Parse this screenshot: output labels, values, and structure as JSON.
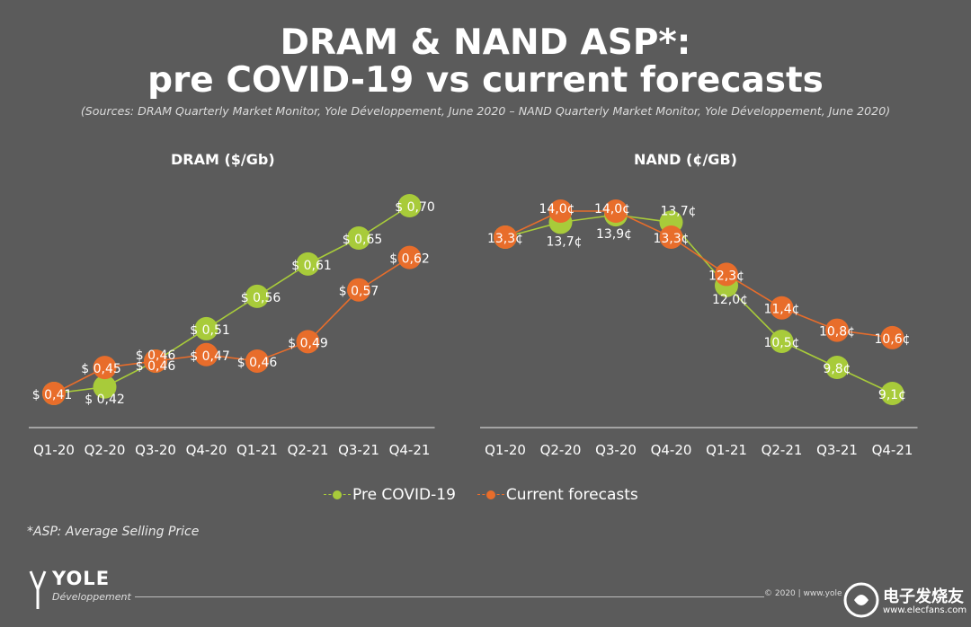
{
  "header": {
    "title_line1": "DRAM & NAND ASP*:",
    "title_line2": "pre COVID-19 vs current forecasts",
    "sources": "(Sources: DRAM Quarterly Market Monitor, Yole Développement, June 2020 – NAND Quarterly Market Monitor, Yole Développement, June 2020)"
  },
  "colors": {
    "pre": "#a8cb3a",
    "current": "#e86d2b",
    "background": "#5b5b5b"
  },
  "legend": {
    "pre_label": "Pre COVID-19",
    "current_label": "Current forecasts"
  },
  "footnote": "*ASP: Average Selling Price",
  "footer": {
    "logo_word": "YOLE",
    "logo_sub": "Développement",
    "copyright": "© 2020 | www.yole",
    "watermark_text": "电子发烧友",
    "watermark_url": "www.elecfans.com"
  },
  "chart_data": [
    {
      "type": "line",
      "title": "DRAM ($/Gb)",
      "categories": [
        "Q1-20",
        "Q2-20",
        "Q3-20",
        "Q4-20",
        "Q1-21",
        "Q2-21",
        "Q3-21",
        "Q4-21"
      ],
      "series": [
        {
          "name": "Pre COVID-19",
          "values": [
            0.41,
            0.42,
            0.46,
            0.51,
            0.56,
            0.61,
            0.65,
            0.7
          ],
          "labels": [
            "",
            "$ 0,42",
            "$ 0,46",
            "$ 0,51",
            "$ 0,56",
            "$ 0,61",
            "$ 0,65",
            "$ 0,70"
          ]
        },
        {
          "name": "Current forecasts",
          "values": [
            0.41,
            0.45,
            0.46,
            0.47,
            0.46,
            0.49,
            0.57,
            0.62
          ],
          "labels": [
            "$ 0,41",
            "$ 0,45",
            "$ 0,46",
            "$ 0,47",
            "$ 0,46",
            "$ 0,49",
            "$ 0,57",
            "$ 0,62"
          ]
        }
      ]
    },
    {
      "type": "line",
      "title": "NAND (¢/GB)",
      "categories": [
        "Q1-20",
        "Q2-20",
        "Q3-20",
        "Q4-20",
        "Q1-21",
        "Q2-21",
        "Q3-21",
        "Q4-21"
      ],
      "series": [
        {
          "name": "Pre COVID-19",
          "values": [
            13.3,
            13.7,
            13.9,
            13.7,
            12.0,
            10.5,
            9.8,
            9.1
          ],
          "labels": [
            "",
            "13,7¢",
            "13,9¢",
            "13,7¢",
            "12,0¢",
            "10,5¢",
            "9,8¢",
            "9,1¢"
          ]
        },
        {
          "name": "Current forecasts",
          "values": [
            13.3,
            14.0,
            14.0,
            13.3,
            12.3,
            11.4,
            10.8,
            10.6
          ],
          "labels": [
            "13,3¢",
            "14,0¢",
            "14,0¢",
            "13,3¢",
            "12,3¢",
            "11,4¢",
            "10,8¢",
            "10,6¢"
          ]
        }
      ]
    }
  ]
}
